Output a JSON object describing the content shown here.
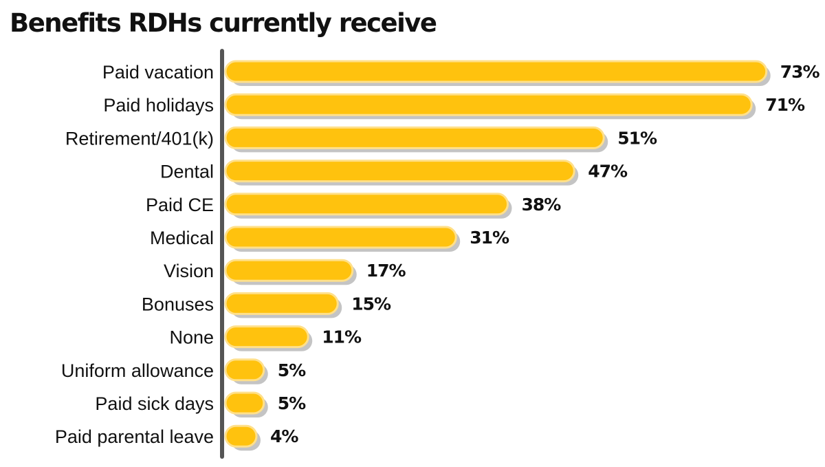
{
  "chart_data": {
    "type": "bar",
    "orientation": "horizontal",
    "title": "Benefits RDHs currently receive",
    "xlabel": "",
    "ylabel": "",
    "xlim": [
      0,
      75
    ],
    "grid": false,
    "categories": [
      "Paid vacation",
      "Paid holidays",
      "Retirement/401(k)",
      "Dental",
      "Paid CE",
      "Medical",
      "Vision",
      "Bonuses",
      "None",
      "Uniform allowance",
      "Paid sick days",
      "Paid parental leave"
    ],
    "values": [
      73,
      71,
      51,
      47,
      38,
      31,
      17,
      15,
      11,
      5,
      5,
      4
    ],
    "value_labels": [
      "73%",
      "71%",
      "51%",
      "47%",
      "38%",
      "31%",
      "17%",
      "15%",
      "11%",
      "5%",
      "5%",
      "4%"
    ],
    "colors": {
      "bar": "#FFC20E",
      "bar_outline": "#FFE08A",
      "shadow": "#C4C4C4",
      "axis": "#555555",
      "text": "#111111"
    }
  }
}
